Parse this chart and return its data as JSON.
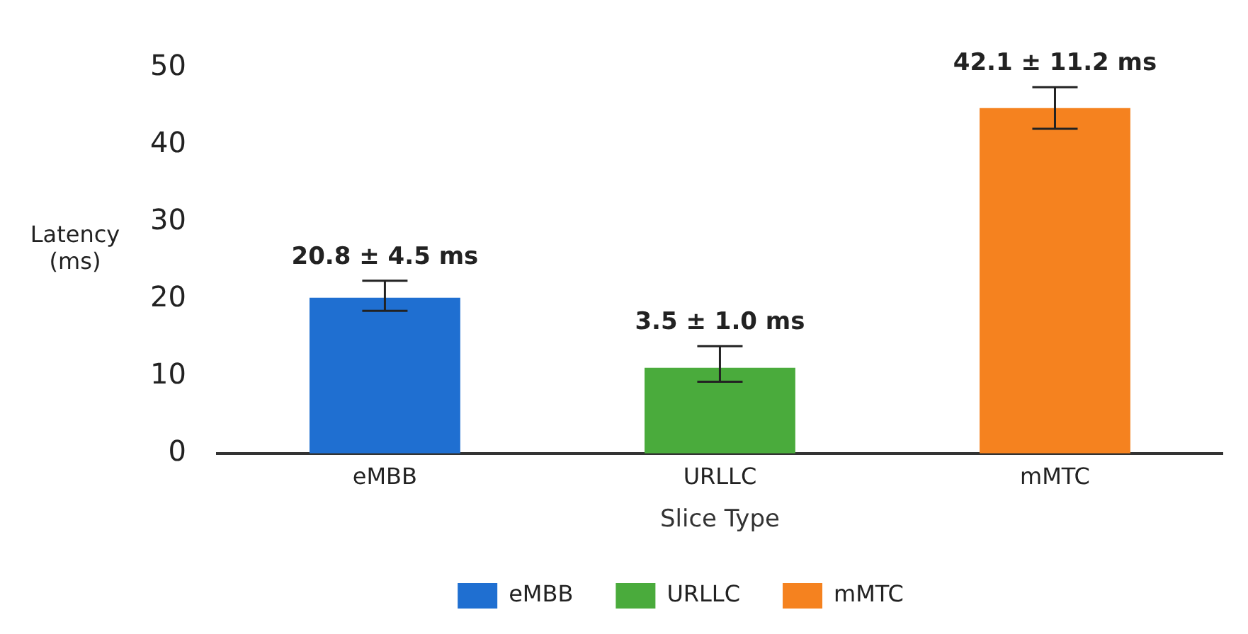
{
  "chart_data": {
    "type": "bar",
    "xlabel": "Slice Type",
    "ylabel": "Latency\n(ms)",
    "categories": [
      "eMBB",
      "URLLC",
      "mMTC"
    ],
    "series": [
      {
        "name": "eMBB",
        "color": "#1f6fd1",
        "values": [
          20.2,
          null,
          null
        ],
        "errors": [
          [
            18.5,
            22.4
          ],
          null,
          null
        ]
      },
      {
        "name": "URLLC",
        "color": "#4aab3c",
        "values": [
          null,
          11.1,
          null
        ],
        "errors": [
          null,
          [
            9.3,
            13.9
          ],
          null
        ]
      },
      {
        "name": "mMTC",
        "color": "#f5821f",
        "values": [
          null,
          null,
          44.8
        ],
        "errors": [
          null,
          null,
          [
            42.1,
            47.5
          ]
        ]
      }
    ],
    "annotations": [
      "20.8 ± 4.5 ms",
      "3.5 ± 1.0 ms",
      "42.1 ± 11.2 ms"
    ],
    "ylim": [
      0,
      50
    ],
    "yticks": [
      0,
      10,
      20,
      30,
      40,
      50
    ],
    "grid": false,
    "legend": "bottom"
  }
}
